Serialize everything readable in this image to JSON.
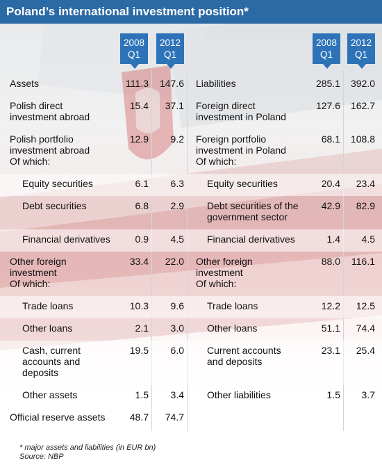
{
  "title": "Poland’s international investment position*",
  "columns": {
    "assets_2008": [
      "2008",
      "Q1"
    ],
    "assets_2012": [
      "2012",
      "Q1"
    ],
    "liab_2008": [
      "2008",
      "Q1"
    ],
    "liab_2012": [
      "2012",
      "Q1"
    ]
  },
  "colors": {
    "title_bar": "#2c6aa6",
    "col_header": "#2e73b8"
  },
  "assets": [
    {
      "label": "Assets",
      "v2008": "111.3",
      "v2012": "147.6"
    },
    {
      "label": "Polish direct\ninvestment abroad",
      "v2008": "15.4",
      "v2012": "37.1"
    },
    {
      "label": "Polish portfolio\ninvestment abroad\n    Of which:",
      "v2008": "12.9",
      "v2012": "9.2"
    },
    {
      "label": "Equity securities",
      "v2008": "6.1",
      "v2012": "6.3",
      "indent": true
    },
    {
      "label": "Debt securities",
      "v2008": "6.8",
      "v2012": "2.9",
      "indent": true
    },
    {
      "label": "Financial derivatives",
      "v2008": "0.9",
      "v2012": "4.5",
      "indent": true
    },
    {
      "label": "Other foreign\ninvestment\n    Of which:",
      "v2008": "33.4",
      "v2012": "22.0"
    },
    {
      "label": "Trade loans",
      "v2008": "10.3",
      "v2012": "9.6",
      "indent": true
    },
    {
      "label": "Other loans",
      "v2008": "2.1",
      "v2012": "3.0",
      "indent": true
    },
    {
      "label": "Cash, current\naccounts and\ndeposits",
      "v2008": "19.5",
      "v2012": "6.0",
      "indent": true
    },
    {
      "label": "Other assets",
      "v2008": "1.5",
      "v2012": "3.4",
      "indent": true
    },
    {
      "label": "Official reserve assets",
      "v2008": "48.7",
      "v2012": "74.7"
    }
  ],
  "liabilities": [
    {
      "label": "Liabilities",
      "v2008": "285.1",
      "v2012": "392.0"
    },
    {
      "label": "Foreign direct\ninvestment in Poland",
      "v2008": "127.6",
      "v2012": "162.7"
    },
    {
      "label": "Foreign portfolio\ninvestment in Poland\n    Of which:",
      "v2008": "68.1",
      "v2012": "108.8"
    },
    {
      "label": "Equity securities",
      "v2008": "20.4",
      "v2012": "23.4",
      "indent": true
    },
    {
      "label": "Debt securities of the\ngovernment sector",
      "v2008": "42.9",
      "v2012": "82.9",
      "indent": true
    },
    {
      "label": "Financial derivatives",
      "v2008": "1.4",
      "v2012": "4.5",
      "indent": true
    },
    {
      "label": "Other foreign\ninvestment\n    Of which:",
      "v2008": "88.0",
      "v2012": "116.1"
    },
    {
      "label": "Trade loans",
      "v2008": "12.2",
      "v2012": "12.5",
      "indent": true
    },
    {
      "label": "Other loans",
      "v2008": "51.1",
      "v2012": "74.4",
      "indent": true
    },
    {
      "label": "Current accounts\nand deposits",
      "v2008": "23.1",
      "v2012": "25.4",
      "indent": true
    },
    {
      "label": "Other liabilities",
      "v2008": "1.5",
      "v2012": "3.7",
      "indent": true
    }
  ],
  "footer": {
    "note": "* major assets and liabilities (in EUR bn)",
    "source": "Source: NBP"
  },
  "chart_data": {
    "type": "table",
    "title": "Poland’s international investment position*",
    "columns": [
      "2008 Q1",
      "2012 Q1"
    ],
    "unit": "EUR bn",
    "assets": {
      "Assets": [
        111.3,
        147.6
      ],
      "Polish direct investment abroad": [
        15.4,
        37.1
      ],
      "Polish portfolio investment abroad": [
        12.9,
        9.2
      ],
      "Equity securities": [
        6.1,
        6.3
      ],
      "Debt securities": [
        6.8,
        2.9
      ],
      "Financial derivatives": [
        0.9,
        4.5
      ],
      "Other foreign investment": [
        33.4,
        22.0
      ],
      "Trade loans": [
        10.3,
        9.6
      ],
      "Other loans": [
        2.1,
        3.0
      ],
      "Cash, current accounts and deposits": [
        19.5,
        6.0
      ],
      "Other assets": [
        1.5,
        3.4
      ],
      "Official reserve assets": [
        48.7,
        74.7
      ]
    },
    "liabilities": {
      "Liabilities": [
        285.1,
        392.0
      ],
      "Foreign direct investment in Poland": [
        127.6,
        162.7
      ],
      "Foreign portfolio investment in Poland": [
        68.1,
        108.8
      ],
      "Equity securities": [
        20.4,
        23.4
      ],
      "Debt securities of the government sector": [
        42.9,
        82.9
      ],
      "Financial derivatives": [
        1.4,
        4.5
      ],
      "Other foreign investment": [
        88.0,
        116.1
      ],
      "Trade loans": [
        12.2,
        12.5
      ],
      "Other loans": [
        51.1,
        74.4
      ],
      "Current accounts and deposits": [
        23.1,
        25.4
      ],
      "Other liabilities": [
        1.5,
        3.7
      ]
    }
  }
}
